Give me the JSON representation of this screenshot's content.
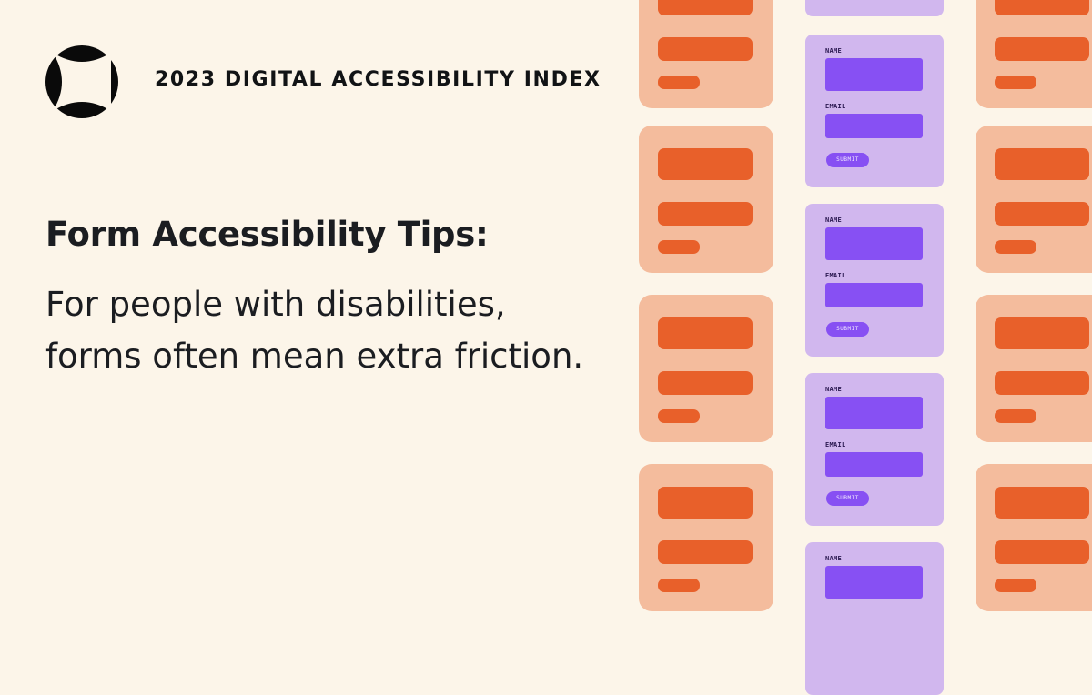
{
  "header": {
    "logo_icon": "accessibility-index-logo-icon",
    "title": "2023 DIGITAL ACCESSIBILITY INDEX"
  },
  "main": {
    "heading": "Form Accessibility Tips:",
    "subtext": "For people with disabilities, forms often mean extra friction."
  },
  "illustration": {
    "form_name_label": "NAME",
    "form_email_label": "EMAIL",
    "form_submit_label": "SUBMIT"
  },
  "colors": {
    "background": "#fcf5e9",
    "peach_card": "#f4bc9d",
    "orange_bar": "#e8602a",
    "lavender_card": "#d1b7ee",
    "purple_field": "#8750f3",
    "text": "#1b1d21"
  }
}
